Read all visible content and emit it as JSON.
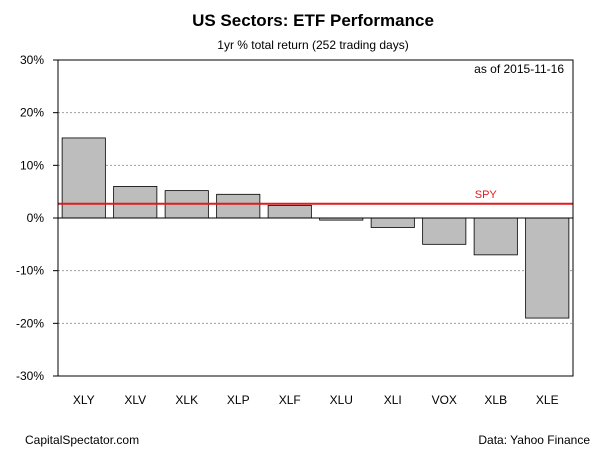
{
  "chart_data": {
    "type": "bar",
    "title": "US Sectors: ETF Performance",
    "subtitle": "1yr % total return (252 trading days)",
    "annotation": "as of  2015-11-16",
    "categories": [
      "XLY",
      "XLV",
      "XLK",
      "XLP",
      "XLF",
      "XLU",
      "XLI",
      "VOX",
      "XLB",
      "XLE"
    ],
    "values": [
      15.2,
      6.0,
      5.2,
      4.5,
      2.4,
      -0.4,
      -1.8,
      -5.0,
      -7.0,
      -19.0
    ],
    "ylim": [
      -30,
      30
    ],
    "yticks": [
      30,
      20,
      10,
      0,
      -10,
      -20,
      -30
    ],
    "ytick_labels": [
      "30%",
      "20%",
      "10%",
      "0%",
      "-10%",
      "-20%",
      "-30%"
    ],
    "grid": true,
    "reference_line": {
      "label": "SPY",
      "value": 2.7,
      "color": "#e31a1c"
    },
    "bar_color": "#bdbdbd"
  },
  "footer": {
    "left": "CapitalSpectator.com",
    "right": "Data: Yahoo Finance"
  }
}
